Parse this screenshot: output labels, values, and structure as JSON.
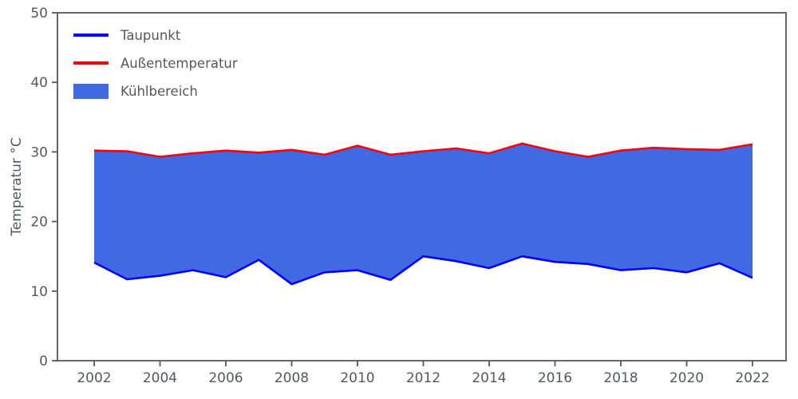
{
  "chart_data": {
    "type": "area",
    "title": "",
    "xlabel": "",
    "ylabel": "Temperatur °C",
    "ylim": [
      0,
      50
    ],
    "yticks": [
      0,
      10,
      20,
      30,
      40,
      50
    ],
    "xticks": [
      2002,
      2004,
      2006,
      2008,
      2010,
      2012,
      2014,
      2016,
      2018,
      2020,
      2022
    ],
    "x": [
      2002,
      2003,
      2004,
      2005,
      2006,
      2007,
      2008,
      2009,
      2010,
      2011,
      2012,
      2013,
      2014,
      2015,
      2016,
      2017,
      2018,
      2019,
      2020,
      2021,
      2022
    ],
    "series": [
      {
        "name": "Taupunkt",
        "color": "#0000ff",
        "values": [
          14.1,
          11.7,
          12.2,
          13.0,
          12.0,
          14.5,
          11.0,
          12.7,
          13.0,
          11.6,
          15.0,
          14.3,
          13.3,
          15.0,
          14.2,
          13.9,
          13.0,
          13.3,
          12.7,
          14.0,
          11.9
        ]
      },
      {
        "name": "Außentemperatur",
        "color": "#ff0000",
        "values": [
          30.2,
          30.1,
          29.3,
          29.8,
          30.2,
          29.9,
          30.3,
          29.6,
          30.9,
          29.6,
          30.1,
          30.5,
          29.8,
          31.2,
          30.1,
          29.3,
          30.2,
          30.6,
          30.4,
          30.3,
          31.1
        ]
      }
    ],
    "fill": {
      "name": "Kühlbereich",
      "color": "#4169e1",
      "between": [
        "Taupunkt",
        "Außentemperatur"
      ]
    },
    "legend_position": "upper-left",
    "grid": false,
    "axis_color": "#54585e",
    "text_color": "#54585e"
  }
}
